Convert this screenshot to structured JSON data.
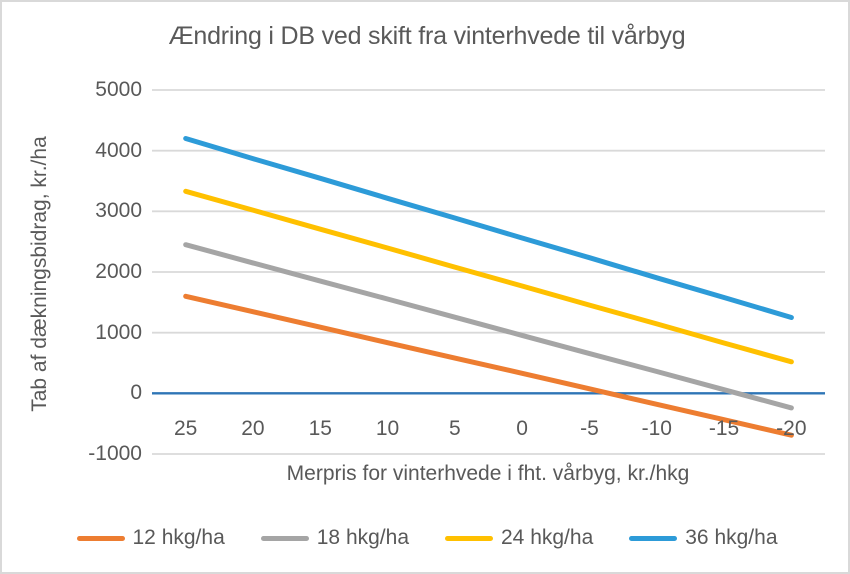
{
  "chart": {
    "title": "Ændring i DB ved skift fra vinterhvede til vårbyg",
    "x_axis": {
      "label": "Merpris for vinterhvede i fht. vårbyg, kr./hkg",
      "ticks": [
        "25",
        "20",
        "15",
        "10",
        "5",
        "0",
        "-5",
        "-10",
        "-15",
        "-20"
      ]
    },
    "y_axis": {
      "label": "Tab af dækningsbidrag, kr./ha",
      "ticks": [
        5000,
        4000,
        3000,
        2000,
        1000,
        0,
        -1000
      ]
    }
  },
  "chart_data": {
    "type": "line",
    "title": "Ændring i DB ved skift fra vinterhvede til vårbyg",
    "xlabel": "Merpris for vinterhvede i fht. vårbyg, kr./hkg",
    "ylabel": "Tab af dækningsbidrag, kr./ha",
    "x": [
      25,
      20,
      15,
      10,
      5,
      0,
      -5,
      -10,
      -15,
      -20
    ],
    "ylim": [
      -1000,
      5000
    ],
    "grid": "horizontal-gridlines",
    "legend_position": "bottom",
    "gridline_color": "#D9D9D9",
    "zero_line_color": "#2E75B6",
    "text_color": "#595959",
    "series": [
      {
        "name": "12 hkg/ha",
        "color": "#ED7D31",
        "values": [
          1600,
          1345,
          1090,
          835,
          580,
          330,
          75,
          -180,
          -435,
          -690
        ]
      },
      {
        "name": "18 hkg/ha",
        "color": "#A5A5A5",
        "values": [
          2450,
          2150,
          1850,
          1555,
          1255,
          955,
          655,
          360,
          60,
          -240
        ]
      },
      {
        "name": "24 hkg/ha",
        "color": "#FFC000",
        "values": [
          3330,
          3020,
          2705,
          2395,
          2080,
          1770,
          1455,
          1145,
          830,
          520
        ]
      },
      {
        "name": "36 hkg/ha",
        "color": "#2D9BD8",
        "values": [
          4200,
          3870,
          3545,
          3215,
          2890,
          2560,
          2235,
          1905,
          1580,
          1250
        ]
      }
    ]
  }
}
